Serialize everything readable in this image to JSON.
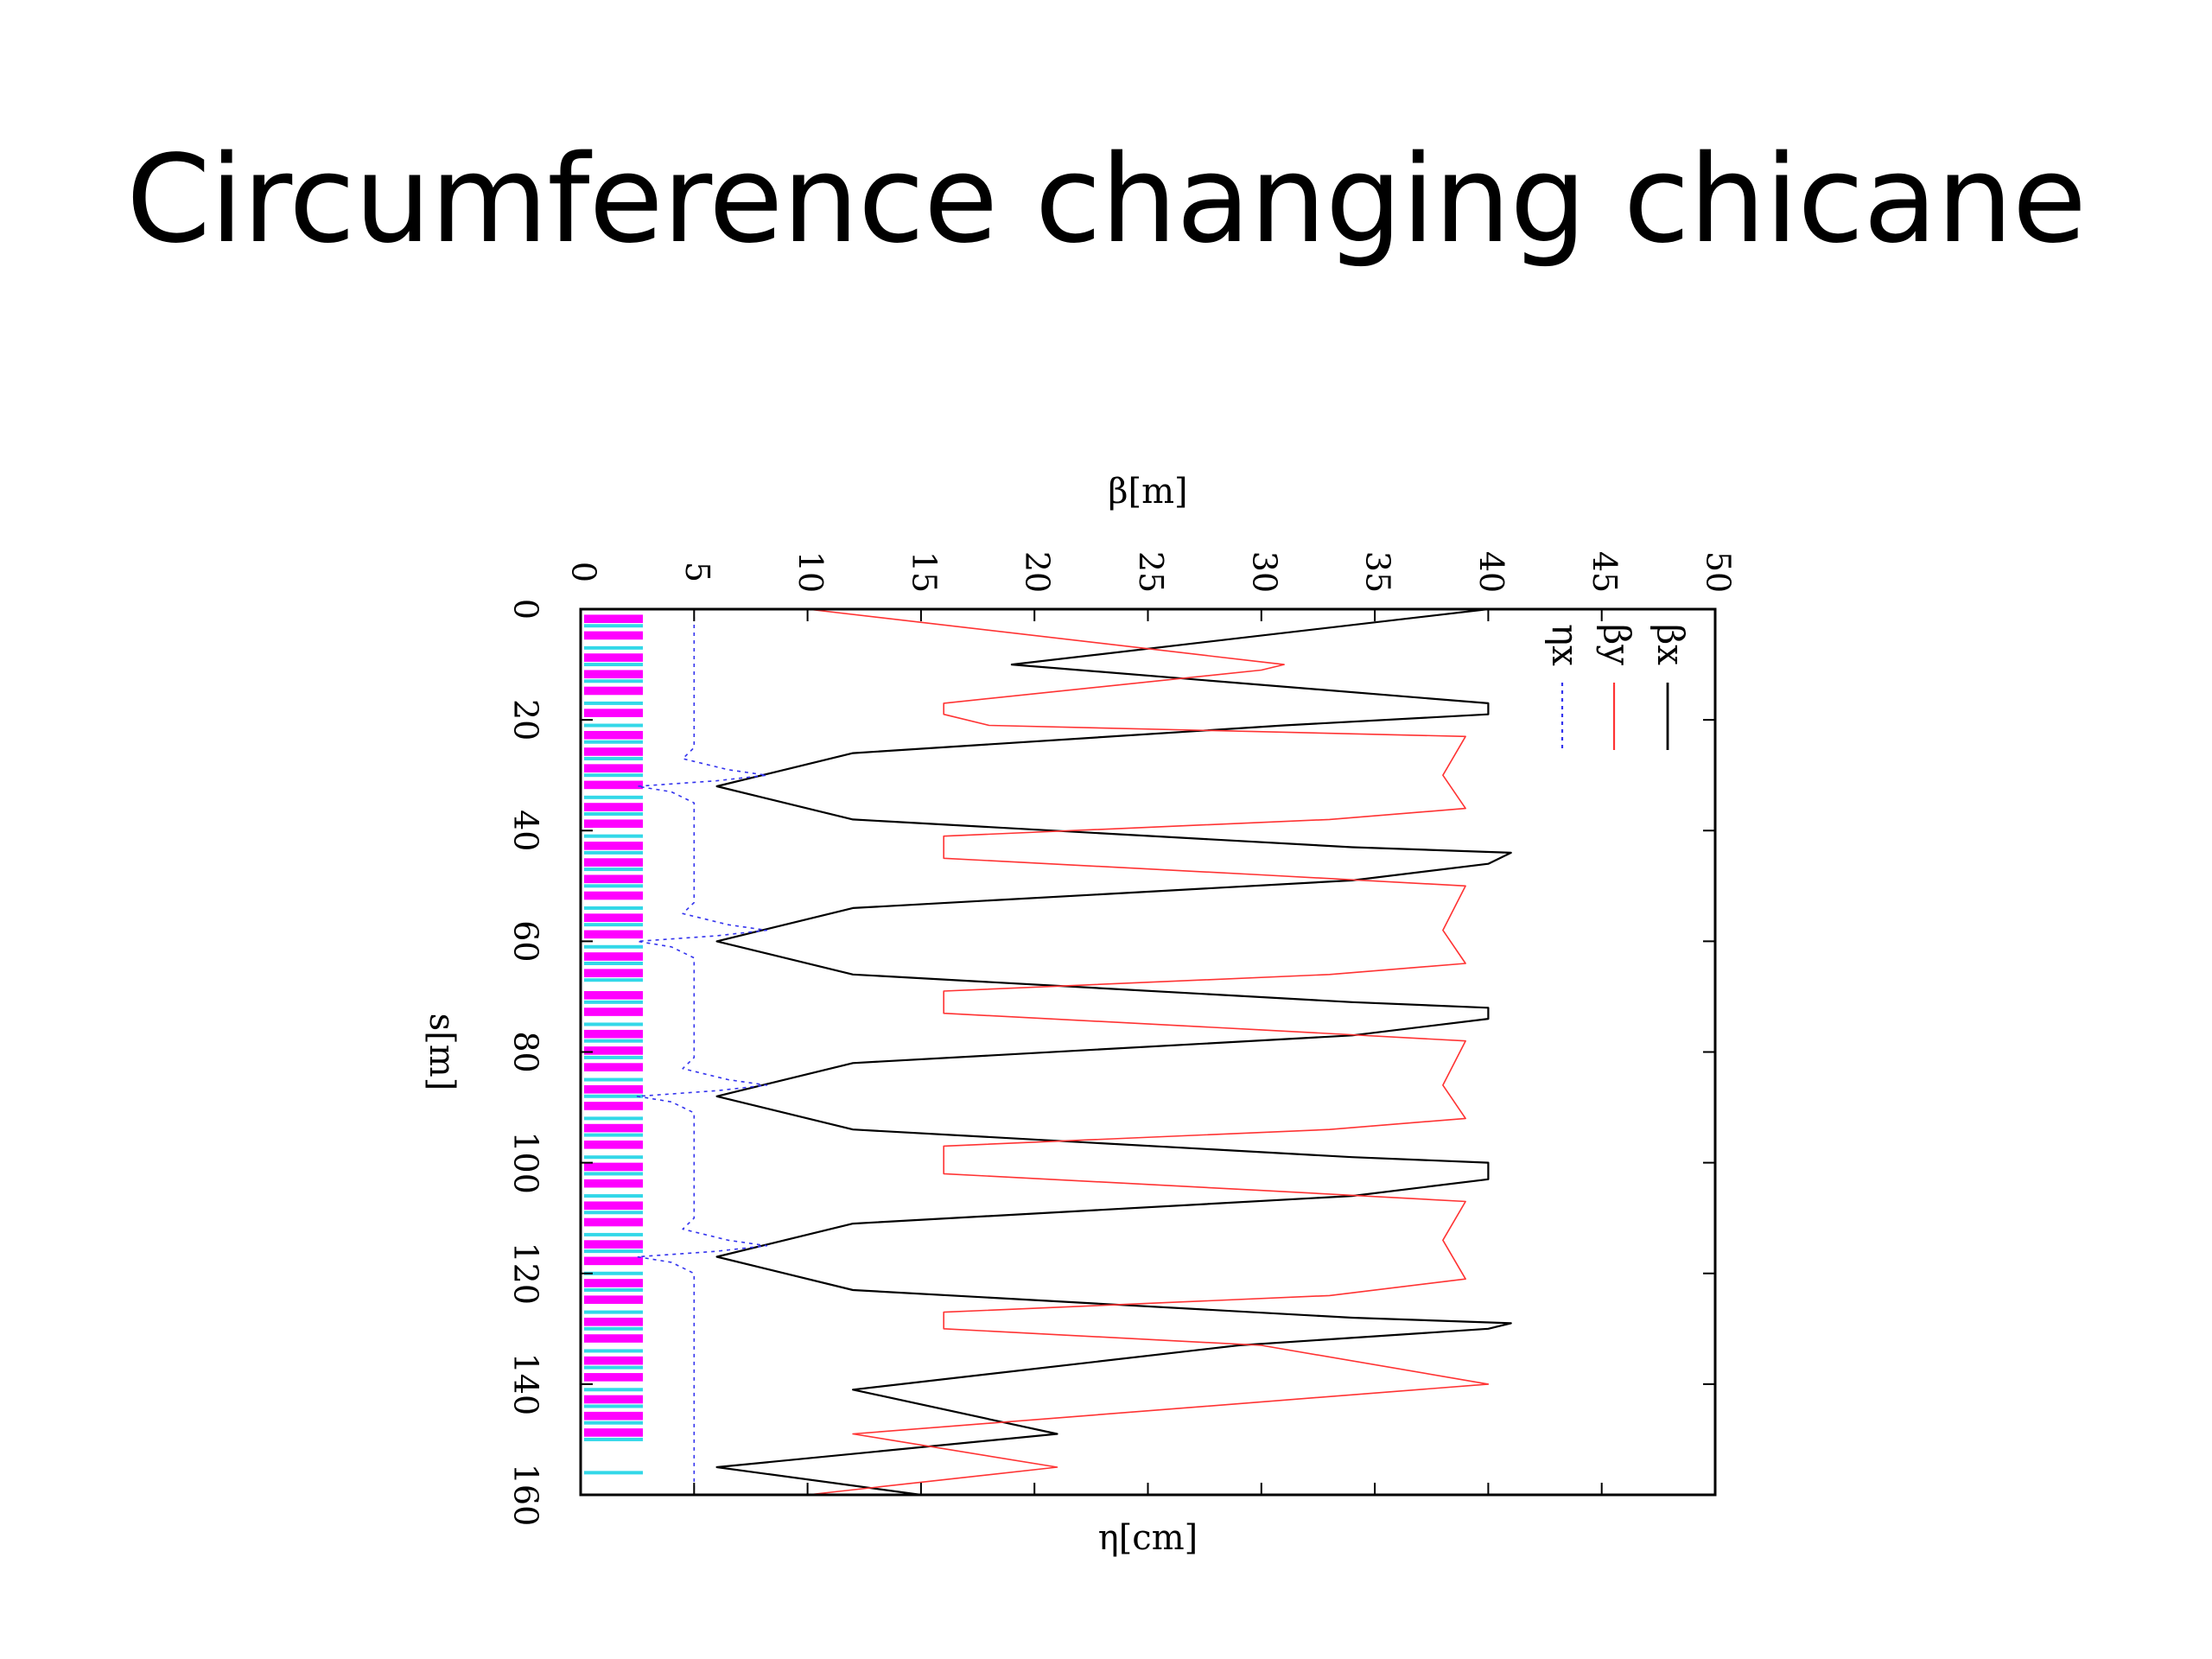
{
  "slide": {
    "title": "Circumference changing chicane"
  },
  "chart_data": {
    "type": "line",
    "title": "",
    "xlabel": "s[m]",
    "ylabel": "β[m]",
    "y2label": "η[cm]",
    "xlim": [
      0,
      160
    ],
    "ylim": [
      0,
      50
    ],
    "xticks": [
      0,
      20,
      40,
      60,
      80,
      100,
      120,
      140,
      160
    ],
    "yticks": [
      0,
      5,
      10,
      15,
      20,
      25,
      30,
      35,
      40,
      45,
      50
    ],
    "eta_offset": 5,
    "legend": [
      "βx",
      "βy",
      "ηx"
    ],
    "legend_position": "top-right",
    "grid": false,
    "colors": {
      "betax": "#000000",
      "betay": "#ff3333",
      "etax": "#3333ee",
      "magnet_bend": "#ff00ff",
      "magnet_quad": "#33d8e8",
      "frame": "#000000"
    },
    "series": [
      {
        "name": "βx",
        "key": "betax",
        "points": [
          [
            0,
            40
          ],
          [
            10,
            19
          ],
          [
            17,
            40
          ],
          [
            19,
            40
          ],
          [
            21,
            31
          ],
          [
            26,
            12
          ],
          [
            32,
            6
          ],
          [
            38,
            12
          ],
          [
            43,
            34
          ],
          [
            44,
            41
          ],
          [
            46,
            40
          ],
          [
            49,
            34
          ],
          [
            54,
            12
          ],
          [
            60,
            6
          ],
          [
            66,
            12
          ],
          [
            71,
            34
          ],
          [
            72,
            40
          ],
          [
            74,
            40
          ],
          [
            77,
            34
          ],
          [
            82,
            12
          ],
          [
            88,
            6
          ],
          [
            94,
            12
          ],
          [
            99,
            34
          ],
          [
            100,
            40
          ],
          [
            103,
            40
          ],
          [
            106,
            34
          ],
          [
            111,
            12
          ],
          [
            117,
            6
          ],
          [
            123,
            12
          ],
          [
            128,
            34
          ],
          [
            129,
            41
          ],
          [
            130,
            40
          ],
          [
            133,
            29
          ],
          [
            141,
            12
          ],
          [
            149,
            21
          ],
          [
            155,
            6
          ],
          [
            160,
            15
          ]
        ]
      },
      {
        "name": "βy",
        "key": "betay",
        "points": [
          [
            0,
            10
          ],
          [
            10,
            31
          ],
          [
            11,
            30
          ],
          [
            17,
            16
          ],
          [
            19,
            16
          ],
          [
            21,
            18
          ],
          [
            23,
            39
          ],
          [
            30,
            38
          ],
          [
            36,
            39
          ],
          [
            38,
            33
          ],
          [
            41,
            16
          ],
          [
            45,
            16
          ],
          [
            48,
            30
          ],
          [
            50,
            39
          ],
          [
            58,
            38
          ],
          [
            64,
            39
          ],
          [
            66,
            33
          ],
          [
            69,
            16
          ],
          [
            73,
            16
          ],
          [
            76,
            30
          ],
          [
            78,
            39
          ],
          [
            86,
            38
          ],
          [
            92,
            39
          ],
          [
            94,
            33
          ],
          [
            97,
            16
          ],
          [
            102,
            16
          ],
          [
            105,
            30
          ],
          [
            107,
            39
          ],
          [
            114,
            38
          ],
          [
            121,
            39
          ],
          [
            124,
            33
          ],
          [
            127,
            16
          ],
          [
            130,
            16
          ],
          [
            133,
            30
          ],
          [
            140,
            40
          ],
          [
            149,
            12
          ],
          [
            155,
            21
          ],
          [
            160,
            10
          ]
        ]
      },
      {
        "name": "ηx",
        "key": "etax",
        "points": [
          [
            0,
            0
          ],
          [
            25,
            0
          ],
          [
            27,
            -0.5
          ],
          [
            29,
            1.5
          ],
          [
            30,
            3.2
          ],
          [
            31,
            1
          ],
          [
            32,
            -2.5
          ],
          [
            33,
            -1
          ],
          [
            35,
            0
          ],
          [
            53,
            0
          ],
          [
            55,
            -0.5
          ],
          [
            57,
            1.5
          ],
          [
            58,
            3.2
          ],
          [
            59,
            1
          ],
          [
            60,
            -2.5
          ],
          [
            61,
            -1
          ],
          [
            63,
            0
          ],
          [
            81,
            0
          ],
          [
            83,
            -0.5
          ],
          [
            85,
            1.5
          ],
          [
            86,
            3.2
          ],
          [
            87,
            1
          ],
          [
            88,
            -2.5
          ],
          [
            89,
            -1
          ],
          [
            91,
            0
          ],
          [
            110,
            0
          ],
          [
            112,
            -0.5
          ],
          [
            114,
            1.5
          ],
          [
            115,
            3.2
          ],
          [
            116,
            1
          ],
          [
            117,
            -2.5
          ],
          [
            118,
            -1
          ],
          [
            120,
            0
          ],
          [
            160,
            0
          ]
        ]
      }
    ],
    "magnets": {
      "bends": [
        [
          1,
          2.5
        ],
        [
          4,
          5.5
        ],
        [
          8,
          9.5
        ],
        [
          11,
          12.5
        ],
        [
          14,
          15.5
        ],
        [
          18,
          19.5
        ],
        [
          22,
          23.5
        ],
        [
          25,
          26.5
        ],
        [
          28,
          29.5
        ],
        [
          31,
          32.5
        ],
        [
          35,
          36.5
        ],
        [
          38,
          39.5
        ],
        [
          42,
          43.5
        ],
        [
          45,
          46.5
        ],
        [
          48,
          49.5
        ],
        [
          51,
          52.5
        ],
        [
          55,
          56.5
        ],
        [
          58,
          59.5
        ],
        [
          62,
          63.5
        ],
        [
          65,
          66.5
        ],
        [
          69,
          70.5
        ],
        [
          72,
          73.5
        ],
        [
          76,
          77.5
        ],
        [
          79,
          80.5
        ],
        [
          82,
          83.5
        ],
        [
          86,
          87.5
        ],
        [
          89,
          90.5
        ],
        [
          93,
          94.5
        ],
        [
          96,
          97.5
        ],
        [
          100,
          101.5
        ],
        [
          103,
          104.5
        ],
        [
          107,
          108.5
        ],
        [
          110,
          111.5
        ],
        [
          114,
          115.5
        ],
        [
          117,
          118.5
        ],
        [
          121,
          122.5
        ],
        [
          124,
          125.5
        ],
        [
          128,
          129.5
        ],
        [
          131,
          132.5
        ],
        [
          135,
          136.5
        ],
        [
          138,
          139.5
        ],
        [
          142,
          143.5
        ],
        [
          145,
          146.5
        ],
        [
          148,
          149.5
        ]
      ],
      "quads": [
        3,
        7,
        10,
        13,
        17,
        21,
        24,
        27,
        30,
        34,
        37,
        41,
        44,
        47,
        50,
        54,
        57,
        61,
        64,
        67,
        71,
        75,
        78,
        81,
        85,
        88,
        92,
        95,
        99,
        102,
        106,
        109,
        113,
        116,
        120,
        123,
        127,
        130,
        134,
        137,
        141,
        144,
        147,
        150,
        156
      ]
    }
  }
}
